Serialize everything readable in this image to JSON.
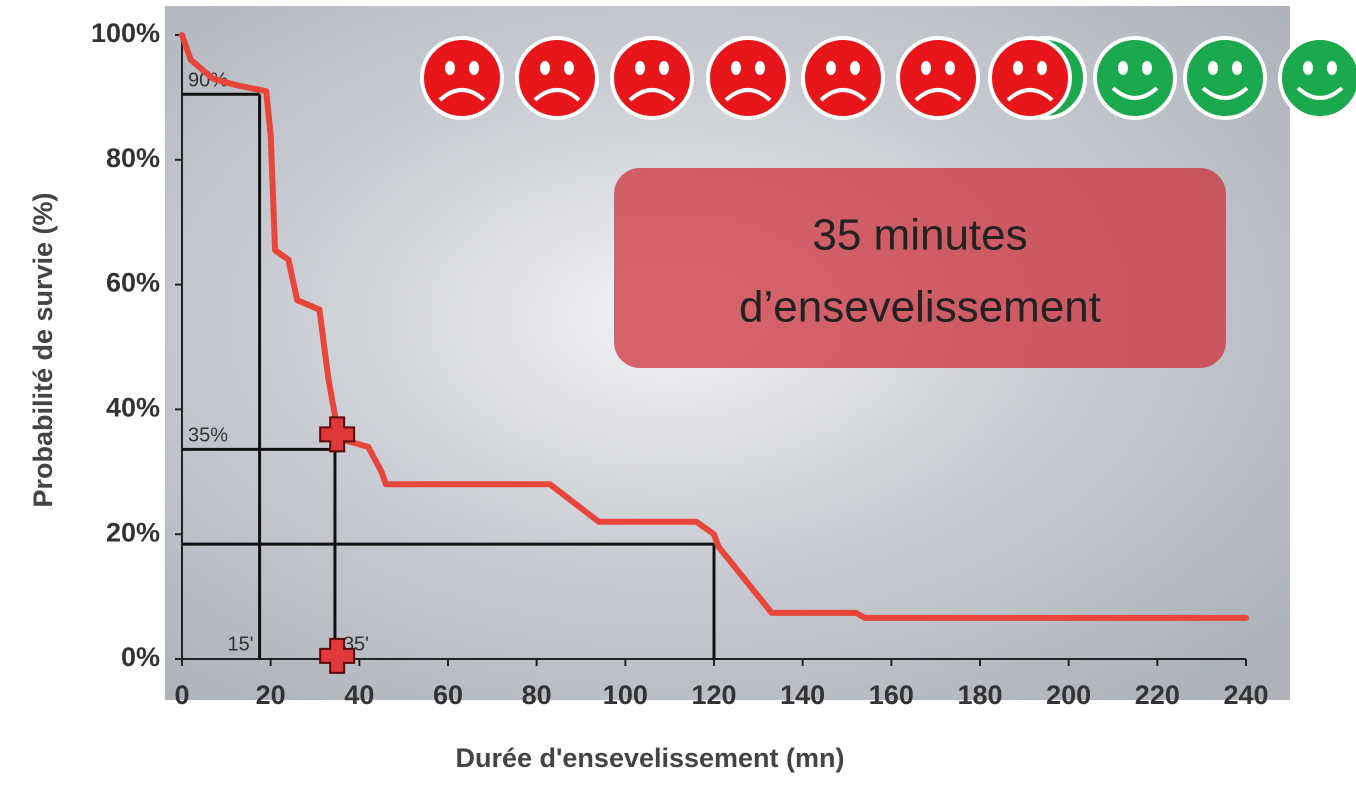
{
  "chart_data": {
    "type": "line",
    "xlabel": "Durée d'ensevelissement (mn)",
    "ylabel": "Probabilité de survie (%)",
    "x": [
      0,
      2,
      7,
      12,
      19,
      20,
      21,
      24,
      26,
      31,
      33,
      35,
      37,
      42,
      45,
      46,
      83,
      94,
      116,
      120,
      121,
      133,
      152,
      154,
      240
    ],
    "series": [
      {
        "color": "#e8463a",
        "values": [
          100,
          96,
          93,
          92,
          91,
          84,
          65.5,
          64,
          57.5,
          56,
          45,
          37,
          35,
          34,
          30,
          28,
          28,
          22,
          22,
          20,
          18,
          7.4,
          7.4,
          6.6,
          6.6
        ]
      }
    ],
    "xlim": [
      0,
      240
    ],
    "xticks": [
      0,
      20,
      40,
      60,
      80,
      100,
      120,
      140,
      160,
      180,
      200,
      220,
      240
    ],
    "ylim": [
      0,
      100
    ],
    "yticks": [
      {
        "value": 0,
        "label": "0%"
      },
      {
        "value": 20,
        "label": "20%"
      },
      {
        "value": 40,
        "label": "40%"
      },
      {
        "value": 60,
        "label": "60%"
      },
      {
        "value": 80,
        "label": "80%"
      },
      {
        "value": 100,
        "label": "100%"
      }
    ],
    "reference_lines": [
      {
        "x": 17.5,
        "y": 90.5,
        "x_label": "15'",
        "y_label": "90%"
      },
      {
        "x": 34.5,
        "y": 33.6,
        "x_label": "35'",
        "y_label": "35%"
      },
      {
        "x": 120,
        "y": 18.4
      }
    ],
    "markers": [
      {
        "x": 35,
        "y": 36
      },
      {
        "x": 35,
        "y": 0.5
      }
    ],
    "annotation": [
      "35 minutes",
      "d’ensevelissement"
    ]
  }
}
